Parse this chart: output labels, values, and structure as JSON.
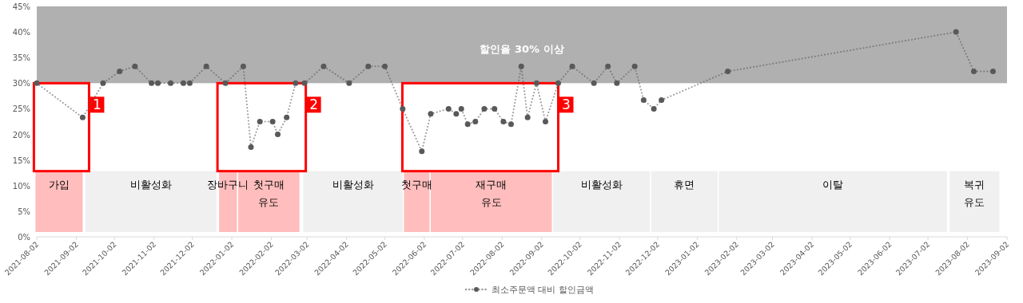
{
  "chart_data": {
    "type": "line",
    "xlim": [
      "2021-08-02",
      "2023-09-02"
    ],
    "xticks": [
      "2021-08-02",
      "2021-09-02",
      "2021-10-02",
      "2021-11-02",
      "2021-12-02",
      "2022-01-02",
      "2022-02-02",
      "2022-03-02",
      "2022-04-02",
      "2022-05-02",
      "2022-06-02",
      "2022-07-02",
      "2022-08-02",
      "2022-09-02",
      "2022-10-02",
      "2022-11-02",
      "2022-12-02",
      "2023-01-02",
      "2023-02-02",
      "2023-03-02",
      "2023-04-02",
      "2023-05-02",
      "2023-06-02",
      "2023-07-02",
      "2023-08-02",
      "2023-09-02"
    ],
    "ylim": [
      0,
      45
    ],
    "yticks": [
      {
        "value": 0,
        "label": "0%"
      },
      {
        "value": 5,
        "label": "5%"
      },
      {
        "value": 10,
        "label": "10%"
      },
      {
        "value": 15,
        "label": "15%"
      },
      {
        "value": 20,
        "label": "20%"
      },
      {
        "value": 25,
        "label": "25%"
      },
      {
        "value": 30,
        "label": "30%"
      },
      {
        "value": 35,
        "label": "35%"
      },
      {
        "value": 40,
        "label": "40%"
      },
      {
        "value": 45,
        "label": "45%"
      }
    ],
    "marker": "circle",
    "line_style": "dotted",
    "legend": "bottom",
    "series": [
      {
        "name": "최소주문액 대비 할인금액",
        "color": "#595959",
        "x": [
          "2021-08-02",
          "2021-09-07",
          "2021-09-23",
          "2021-10-06",
          "2021-10-18",
          "2021-10-31",
          "2021-11-05",
          "2021-11-15",
          "2021-11-25",
          "2021-11-30",
          "2021-12-13",
          "2021-12-28",
          "2022-01-11",
          "2022-01-17",
          "2022-01-24",
          "2022-02-03",
          "2022-02-07",
          "2022-02-14",
          "2022-02-21",
          "2022-02-28",
          "2022-03-15",
          "2022-04-04",
          "2022-04-19",
          "2022-05-02",
          "2022-05-16",
          "2022-05-31",
          "2022-06-07",
          "2022-06-21",
          "2022-06-27",
          "2022-07-01",
          "2022-07-06",
          "2022-07-12",
          "2022-07-19",
          "2022-07-27",
          "2022-08-03",
          "2022-08-09",
          "2022-08-17",
          "2022-08-22",
          "2022-08-29",
          "2022-09-05",
          "2022-09-15",
          "2022-09-26",
          "2022-10-13",
          "2022-10-24",
          "2022-10-31",
          "2022-11-14",
          "2022-11-21",
          "2022-11-29",
          "2022-12-05",
          "2023-01-26",
          "2023-07-24",
          "2023-08-07",
          "2023-08-22"
        ],
        "values": [
          30,
          23.3,
          30,
          32.3,
          33.3,
          30,
          30,
          30,
          30,
          30,
          33.3,
          30,
          33.3,
          17.5,
          22.5,
          22.5,
          20,
          23.3,
          30,
          30,
          33.3,
          30,
          33.3,
          33.3,
          25,
          16.7,
          24,
          25,
          24,
          25,
          22,
          22.5,
          25,
          25,
          22.5,
          22,
          33.3,
          23.3,
          30,
          22.5,
          30,
          33.3,
          30,
          33.3,
          30,
          33.3,
          26.7,
          25,
          26.7,
          32.3,
          40,
          32.3,
          32.3
        ]
      }
    ],
    "bands": [
      {
        "axis": "y",
        "from": 30,
        "to": 45,
        "label": "할인율 30% 이상",
        "color": "#b0b0b0"
      },
      {
        "axis": "x",
        "from": "2021-08-01",
        "to": "2021-09-07",
        "label": "가입",
        "color": "#ffbdbd"
      },
      {
        "axis": "x",
        "from": "2021-09-09",
        "to": "2021-12-21",
        "label": "비활성화",
        "color": "#f0f0f0"
      },
      {
        "axis": "x",
        "from": "2021-12-23",
        "to": "2022-01-06",
        "label": "장바구니",
        "color": "#ffbdbd"
      },
      {
        "axis": "x",
        "from": "2022-01-07",
        "to": "2022-02-24",
        "label": "첫구매\n유도",
        "color": "#ffbdbd"
      },
      {
        "axis": "x",
        "from": "2022-02-27",
        "to": "2022-05-16",
        "label": "비활성화",
        "color": "#f0f0f0"
      },
      {
        "axis": "x",
        "from": "2022-05-17",
        "to": "2022-06-06",
        "label": "첫구매",
        "color": "#ffbdbd"
      },
      {
        "axis": "x",
        "from": "2022-06-07",
        "to": "2022-09-10",
        "label": "재구매\n유도",
        "color": "#ffbdbd"
      },
      {
        "axis": "x",
        "from": "2022-09-11",
        "to": "2022-11-26",
        "label": "비활성화",
        "color": "#f0f0f0"
      },
      {
        "axis": "x",
        "from": "2022-11-27",
        "to": "2023-01-18",
        "label": "휴면",
        "color": "#f0f0f0"
      },
      {
        "axis": "x",
        "from": "2023-01-19",
        "to": "2023-07-17",
        "label": "이탈",
        "color": "#f0f0f0"
      },
      {
        "axis": "x",
        "from": "2023-07-19",
        "to": "2023-08-27",
        "label": "복귀\n유도",
        "color": "#f0f0f0"
      }
    ],
    "annotations": [
      "1",
      "2",
      "3"
    ]
  }
}
